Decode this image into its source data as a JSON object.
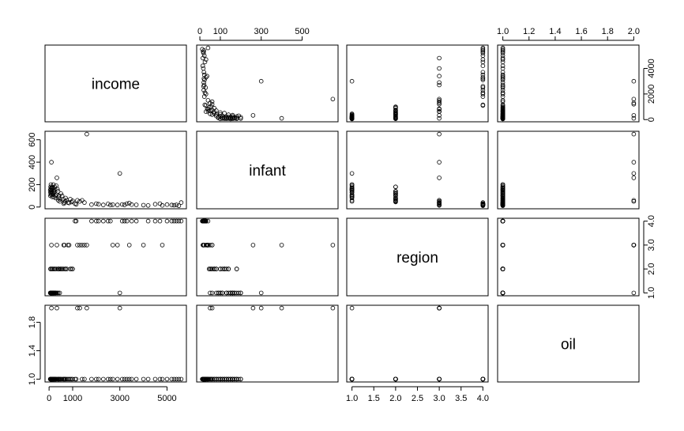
{
  "chart_data": {
    "type": "scatter",
    "variables": [
      "income",
      "infant",
      "region",
      "oil"
    ],
    "ranges": {
      "income": [
        50,
        5600
      ],
      "infant": [
        10,
        650
      ],
      "region": [
        1,
        4
      ],
      "oil": [
        1,
        2
      ]
    },
    "ticks": {
      "income": [
        0,
        1000,
        3000,
        5000
      ],
      "infant": [
        0,
        200,
        400,
        600
      ],
      "infant_top": [
        0,
        100,
        300,
        500
      ],
      "region": [
        1.0,
        1.5,
        2.0,
        2.5,
        3.0,
        3.5,
        4.0
      ],
      "region_right": [
        1.0,
        2.0,
        3.0,
        4.0
      ],
      "oil": [
        1.0,
        1.4,
        1.8
      ],
      "oil_top": [
        1.0,
        1.2,
        1.4,
        1.6,
        1.8,
        2.0
      ],
      "income_right": [
        0,
        2000,
        4000
      ]
    },
    "observations": [
      [
        5600,
        40,
        4,
        1
      ],
      [
        5400,
        20,
        4,
        1
      ],
      [
        5200,
        18,
        4,
        1
      ],
      [
        5000,
        22,
        4,
        1
      ],
      [
        4700,
        30,
        4,
        1
      ],
      [
        4500,
        25,
        4,
        1
      ],
      [
        4200,
        14,
        4,
        1
      ],
      [
        4000,
        17,
        3,
        1
      ],
      [
        3500,
        22,
        4,
        1
      ],
      [
        3400,
        35,
        3,
        1
      ],
      [
        3300,
        30,
        4,
        1
      ],
      [
        3200,
        20,
        4,
        1
      ],
      [
        3000,
        300,
        1,
        2
      ],
      [
        2900,
        19,
        3,
        1
      ],
      [
        2500,
        28,
        4,
        1
      ],
      [
        2300,
        19,
        4,
        1
      ],
      [
        2100,
        25,
        4,
        1
      ],
      [
        2000,
        30,
        4,
        1
      ],
      [
        1800,
        22,
        4,
        1
      ],
      [
        1600,
        650,
        3,
        2
      ],
      [
        1500,
        40,
        3,
        1
      ],
      [
        1400,
        60,
        3,
        1
      ],
      [
        1300,
        50,
        3,
        2
      ],
      [
        1200,
        60,
        3,
        2
      ],
      [
        1100,
        30,
        4,
        1
      ],
      [
        1000,
        55,
        2,
        1
      ],
      [
        900,
        70,
        2,
        1
      ],
      [
        800,
        40,
        3,
        1
      ],
      [
        750,
        60,
        2,
        1
      ],
      [
        700,
        80,
        2,
        1
      ],
      [
        650,
        40,
        3,
        1
      ],
      [
        600,
        70,
        2,
        1
      ],
      [
        550,
        100,
        2,
        1
      ],
      [
        500,
        120,
        2,
        1
      ],
      [
        450,
        50,
        1,
        1
      ],
      [
        400,
        80,
        2,
        1
      ],
      [
        380,
        140,
        2,
        1
      ],
      [
        350,
        160,
        1,
        1
      ],
      [
        330,
        260,
        3,
        2
      ],
      [
        300,
        110,
        2,
        1
      ],
      [
        280,
        80,
        1,
        1
      ],
      [
        260,
        100,
        1,
        1
      ],
      [
        240,
        180,
        2,
        1
      ],
      [
        220,
        130,
        1,
        1
      ],
      [
        200,
        140,
        2,
        1
      ],
      [
        180,
        200,
        1,
        1
      ],
      [
        160,
        170,
        1,
        1
      ],
      [
        150,
        120,
        2,
        1
      ],
      [
        140,
        90,
        1,
        1
      ],
      [
        130,
        160,
        1,
        1
      ],
      [
        120,
        180,
        2,
        1
      ],
      [
        110,
        150,
        1,
        1
      ],
      [
        100,
        400,
        3,
        2
      ],
      [
        90,
        140,
        1,
        1
      ],
      [
        80,
        200,
        1,
        1
      ],
      [
        75,
        120,
        2,
        1
      ],
      [
        70,
        160,
        1,
        1
      ],
      [
        65,
        180,
        1,
        1
      ],
      [
        60,
        130,
        2,
        1
      ],
      [
        55,
        100,
        1,
        1
      ],
      [
        50,
        150,
        1,
        1
      ],
      [
        5500,
        12,
        4,
        1
      ],
      [
        5300,
        16,
        4,
        1
      ],
      [
        4800,
        15,
        3,
        1
      ],
      [
        1150,
        24,
        4,
        1
      ],
      [
        950,
        45,
        2,
        1
      ],
      [
        850,
        36,
        3,
        1
      ],
      [
        680,
        50,
        2,
        1
      ],
      [
        620,
        30,
        3,
        1
      ],
      [
        480,
        70,
        2,
        1
      ],
      [
        420,
        100,
        2,
        1
      ],
      [
        390,
        60,
        1,
        1
      ],
      [
        300,
        190,
        1,
        1
      ],
      [
        250,
        160,
        1,
        1
      ],
      [
        210,
        90,
        1,
        1
      ],
      [
        190,
        150,
        1,
        1
      ],
      [
        170,
        110,
        1,
        1
      ],
      [
        125,
        130,
        1,
        1
      ],
      [
        95,
        170,
        1,
        1
      ],
      [
        85,
        110,
        1,
        1
      ],
      [
        2700,
        21,
        3,
        1
      ],
      [
        2600,
        18,
        4,
        1
      ],
      [
        3100,
        23,
        4,
        1
      ],
      [
        3700,
        20,
        4,
        1
      ]
    ]
  }
}
